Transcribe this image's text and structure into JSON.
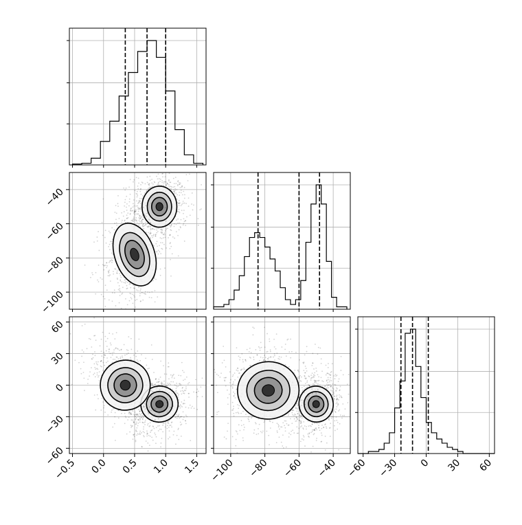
{
  "chart_data": {
    "type": "corner",
    "description": "",
    "parameters": [
      {
        "ticks": [
          "-0.5",
          "0.0",
          "0.5",
          "1.0",
          "1.5"
        ],
        "range": [
          -0.55,
          1.65
        ]
      },
      {
        "ticks": [
          "-100",
          "-80",
          "-60",
          "-40"
        ],
        "range": [
          -110,
          -30
        ]
      },
      {
        "ticks": [
          "-60",
          "-30",
          "0",
          "30",
          "60"
        ],
        "range": [
          -65,
          65
        ]
      }
    ],
    "diagonal": [
      {
        "param": 0,
        "bin_edges": [
          -0.5,
          -0.35,
          -0.2,
          -0.05,
          0.1,
          0.25,
          0.4,
          0.55,
          0.7,
          0.85,
          1.0,
          1.15,
          1.3,
          1.45,
          1.6
        ],
        "counts": [
          1,
          2,
          8,
          28,
          52,
          82,
          110,
          135,
          148,
          128,
          88,
          42,
          12,
          2
        ],
        "quantile_lines": [
          0.35,
          0.7,
          1.0
        ]
      },
      {
        "param": 1,
        "bin_edges": [
          -110,
          -107,
          -104,
          -101,
          -98,
          -95,
          -92,
          -89,
          -86,
          -83,
          -80,
          -77,
          -74,
          -71,
          -68,
          -65,
          -62,
          -59,
          -56,
          -53,
          -50,
          -47,
          -44,
          -41,
          -38,
          -35,
          -32
        ],
        "counts": [
          1,
          1,
          2,
          4,
          8,
          14,
          22,
          30,
          32,
          30,
          26,
          21,
          16,
          9,
          4,
          2,
          4,
          12,
          28,
          44,
          52,
          44,
          20,
          5,
          1,
          1
        ],
        "quantile_lines": [
          -84,
          -60,
          -48
        ]
      },
      {
        "param": 2,
        "bin_edges": [
          -65,
          -60,
          -55,
          -50,
          -45,
          -40,
          -35,
          -30,
          -25,
          -20,
          -15,
          -10,
          -5,
          0,
          5,
          10,
          15,
          20,
          25,
          30,
          35,
          40,
          45,
          50,
          55,
          60,
          65
        ],
        "counts": [
          0,
          0,
          1,
          1,
          2,
          5,
          10,
          22,
          35,
          58,
          60,
          42,
          27,
          15,
          10,
          7,
          5,
          3,
          2,
          1,
          0,
          0,
          0,
          0,
          0,
          0
        ],
        "quantile_lines": [
          -24,
          -13,
          2
        ]
      }
    ],
    "joint_modes": [
      {
        "x_param": 0,
        "y_param": 1,
        "centers": [
          [
            0.9,
            -50
          ],
          [
            0.5,
            -78
          ]
        ]
      },
      {
        "x_param": 0,
        "y_param": 2,
        "centers": [
          [
            0.9,
            -18
          ],
          [
            0.35,
            0
          ]
        ]
      },
      {
        "x_param": 1,
        "y_param": 2,
        "centers": [
          [
            -50,
            -18
          ],
          [
            -78,
            -5
          ]
        ]
      }
    ]
  }
}
